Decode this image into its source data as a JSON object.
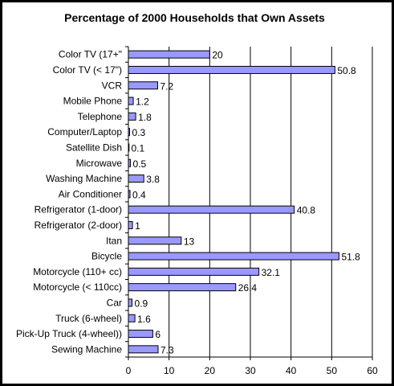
{
  "chart_data": {
    "type": "bar",
    "orientation": "horizontal",
    "title": "Percentage of 2000 Households that Own Assets",
    "xlabel": "",
    "ylabel": "",
    "xlim": [
      0,
      60
    ],
    "x_ticks": [
      "0",
      "10",
      "20",
      "30",
      "40",
      "50",
      "60"
    ],
    "grid": "vertical",
    "legend": "none",
    "bar_color": "#9999ff",
    "categories": [
      "Color TV (17+\"",
      "Color TV (< 17\")",
      "VCR",
      "Mobile Phone",
      "Telephone",
      "Computer/Laptop",
      "Satellite Dish",
      "Microwave",
      "Washing Machine",
      "Air Conditioner",
      "Refrigerator (1-door)",
      "Refrigerator (2-door)",
      "Itan",
      "Bicycle",
      "Motorcycle (110+ cc)",
      "Motorcycle (< 110cc)",
      "Car",
      "Truck (6-wheel)",
      "Pick-Up Truck (4-wheel))",
      "Sewing Machine"
    ],
    "values": [
      20,
      50.8,
      7.2,
      1.2,
      1.8,
      0.3,
      0.1,
      0.5,
      3.8,
      0.4,
      40.8,
      1,
      13,
      51.8,
      32.1,
      26.4,
      0.9,
      1.6,
      6,
      7.3
    ],
    "value_labels": [
      "20",
      "50.8",
      "7.2",
      "1.2",
      "1.8",
      "0.3",
      "0.1",
      "0.5",
      "3.8",
      "0.4",
      "40.8",
      "1",
      "13",
      "51.8",
      "32.1",
      "26.4",
      "0.9",
      "1.6",
      "6",
      "7.3"
    ]
  }
}
